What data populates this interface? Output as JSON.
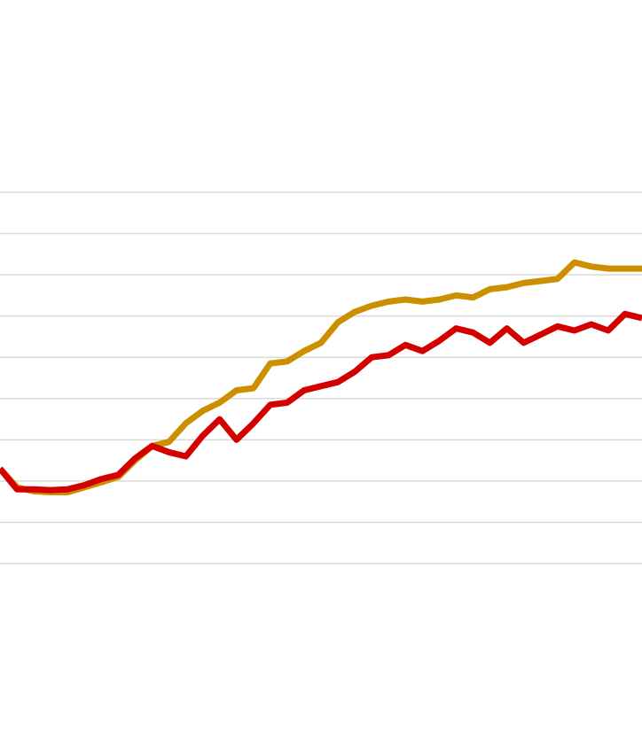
{
  "chart_data": {
    "type": "line",
    "title": "",
    "xlabel": "",
    "ylabel": "",
    "grid": true,
    "legend": "none",
    "ylim": [
      0,
      9
    ],
    "gridlines": [
      0,
      1,
      2,
      3,
      4,
      5,
      6,
      7,
      8,
      9
    ],
    "x": [
      0,
      1,
      2,
      3,
      4,
      5,
      6,
      7,
      8,
      9,
      10,
      11,
      12,
      13,
      14,
      15,
      16,
      17,
      18,
      19,
      20,
      21,
      22,
      23,
      24,
      25,
      26,
      27,
      28,
      29,
      30,
      31,
      32,
      33,
      34,
      35,
      36,
      37,
      38
    ],
    "series": [
      {
        "color": "#cc8f00",
        "values": [
          2.3,
          1.85,
          1.75,
          1.73,
          1.73,
          1.85,
          1.97,
          2.1,
          2.5,
          2.85,
          2.95,
          3.4,
          3.7,
          3.9,
          4.2,
          4.25,
          4.85,
          4.9,
          5.15,
          5.35,
          5.85,
          6.1,
          6.25,
          6.35,
          6.4,
          6.35,
          6.4,
          6.5,
          6.45,
          6.65,
          6.7,
          6.8,
          6.85,
          6.9,
          7.3,
          7.2,
          7.15,
          7.15,
          7.15
        ]
      },
      {
        "color": "#d40000",
        "values": [
          2.3,
          1.8,
          1.8,
          1.78,
          1.8,
          1.9,
          2.05,
          2.15,
          2.55,
          2.85,
          2.7,
          2.6,
          3.1,
          3.5,
          3.0,
          3.4,
          3.85,
          3.9,
          4.2,
          4.3,
          4.4,
          4.65,
          5.0,
          5.05,
          5.3,
          5.15,
          5.4,
          5.7,
          5.6,
          5.35,
          5.7,
          5.35,
          5.55,
          5.75,
          5.65,
          5.8,
          5.65,
          6.05,
          5.95
        ]
      }
    ]
  }
}
